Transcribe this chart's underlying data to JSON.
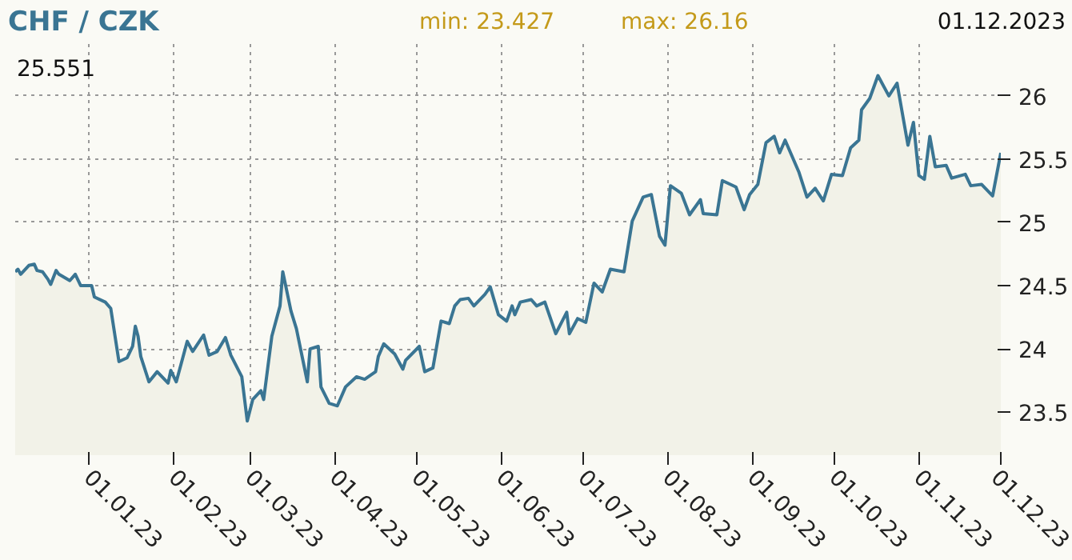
{
  "chart_data": {
    "type": "area",
    "title": "CHF / CZK",
    "annotations": [
      "min: 23.427",
      "max: 26.16",
      "01.12.2023",
      "25.551"
    ],
    "x": [
      "2022-12-05",
      "2022-12-06",
      "2022-12-07",
      "2022-12-10",
      "2022-12-12",
      "2022-12-13",
      "2022-12-15",
      "2022-12-17",
      "2022-12-18",
      "2022-12-20",
      "2022-12-21",
      "2022-12-25",
      "2022-12-27",
      "2022-12-29",
      "2023-01-02",
      "2023-01-03",
      "2023-01-07",
      "2023-01-09",
      "2023-01-12",
      "2023-01-15",
      "2023-01-17",
      "2023-01-18",
      "2023-01-19",
      "2023-01-20",
      "2023-01-23",
      "2023-01-26",
      "2023-01-30",
      "2023-01-31",
      "2023-02-02",
      "2023-02-06",
      "2023-02-08",
      "2023-02-12",
      "2023-02-14",
      "2023-02-17",
      "2023-02-20",
      "2023-02-22",
      "2023-02-26",
      "2023-02-28",
      "2023-03-02",
      "2023-03-05",
      "2023-03-06",
      "2023-03-09",
      "2023-03-12",
      "2023-03-13",
      "2023-03-16",
      "2023-03-18",
      "2023-03-22",
      "2023-03-23",
      "2023-03-26",
      "2023-03-27",
      "2023-03-30",
      "2023-04-02",
      "2023-04-05",
      "2023-04-09",
      "2023-04-12",
      "2023-04-16",
      "2023-04-17",
      "2023-04-19",
      "2023-04-23",
      "2023-04-26",
      "2023-04-27",
      "2023-05-02",
      "2023-05-04",
      "2023-05-07",
      "2023-05-10",
      "2023-05-13",
      "2023-05-15",
      "2023-05-17",
      "2023-05-20",
      "2023-05-22",
      "2023-05-26",
      "2023-05-28",
      "2023-05-31",
      "2023-06-03",
      "2023-06-05",
      "2023-06-06",
      "2023-06-08",
      "2023-06-12",
      "2023-06-14",
      "2023-06-17",
      "2023-06-21",
      "2023-06-25",
      "2023-06-26",
      "2023-06-29",
      "2023-07-02",
      "2023-07-05",
      "2023-07-08",
      "2023-07-11",
      "2023-07-16",
      "2023-07-19",
      "2023-07-23",
      "2023-07-26",
      "2023-07-29",
      "2023-07-31",
      "2023-08-02",
      "2023-08-06",
      "2023-08-09",
      "2023-08-13",
      "2023-08-14",
      "2023-08-19",
      "2023-08-21",
      "2023-08-26",
      "2023-08-29",
      "2023-08-31",
      "2023-09-03",
      "2023-09-06",
      "2023-09-09",
      "2023-09-11",
      "2023-09-13",
      "2023-09-18",
      "2023-09-21",
      "2023-09-24",
      "2023-09-27",
      "2023-09-30",
      "2023-10-04",
      "2023-10-07",
      "2023-10-10",
      "2023-10-11",
      "2023-10-14",
      "2023-10-17",
      "2023-10-21",
      "2023-10-24",
      "2023-10-28",
      "2023-10-30",
      "2023-11-01",
      "2023-11-03",
      "2023-11-05",
      "2023-11-07",
      "2023-11-11",
      "2023-11-13",
      "2023-11-18",
      "2023-11-20",
      "2023-11-24",
      "2023-11-28",
      "2023-12-01"
    ],
    "series": [
      {
        "color": "#3a7593",
        "values": [
          24.61,
          24.63,
          24.59,
          24.66,
          24.67,
          24.62,
          24.61,
          24.55,
          24.51,
          24.62,
          24.59,
          24.54,
          24.59,
          24.5,
          24.5,
          24.41,
          24.37,
          24.32,
          23.9,
          23.93,
          24.02,
          24.18,
          24.1,
          23.94,
          23.74,
          23.82,
          23.73,
          23.83,
          23.74,
          24.06,
          23.98,
          24.11,
          23.95,
          23.98,
          24.09,
          23.95,
          23.78,
          23.43,
          23.6,
          23.67,
          23.6,
          24.1,
          24.34,
          24.61,
          24.3,
          24.16,
          23.74,
          24.0,
          24.02,
          23.7,
          23.57,
          23.55,
          23.7,
          23.78,
          23.76,
          23.82,
          23.94,
          24.04,
          23.96,
          23.84,
          23.91,
          24.02,
          23.82,
          23.85,
          24.22,
          24.2,
          24.34,
          24.39,
          24.4,
          24.34,
          24.43,
          24.49,
          24.27,
          24.22,
          24.34,
          24.27,
          24.37,
          24.39,
          24.34,
          24.37,
          24.12,
          24.29,
          24.12,
          24.24,
          24.21,
          24.52,
          24.45,
          24.63,
          24.61,
          25.01,
          25.2,
          25.22,
          24.89,
          24.82,
          25.29,
          25.23,
          25.06,
          25.18,
          25.07,
          25.06,
          25.33,
          25.28,
          25.1,
          25.22,
          25.3,
          25.63,
          25.68,
          25.55,
          25.65,
          25.4,
          25.2,
          25.27,
          25.17,
          25.38,
          25.37,
          25.59,
          25.65,
          25.89,
          25.98,
          26.16,
          26.0,
          26.1,
          25.61,
          25.79,
          25.37,
          25.34,
          25.68,
          25.44,
          25.45,
          25.35,
          25.38,
          25.29,
          25.3,
          25.21,
          25.55
        ]
      }
    ],
    "xlim": [
      "2022-12-05",
      "2023-12-01"
    ],
    "xticks": [
      {
        "value": "2023-01-01",
        "label": "01.01.23"
      },
      {
        "value": "2023-02-01",
        "label": "01.02.23"
      },
      {
        "value": "2023-03-01",
        "label": "01.03.23"
      },
      {
        "value": "2023-04-01",
        "label": "01.04.23"
      },
      {
        "value": "2023-05-01",
        "label": "01.05.23"
      },
      {
        "value": "2023-06-01",
        "label": "01.06.23"
      },
      {
        "value": "2023-07-01",
        "label": "01.07.23"
      },
      {
        "value": "2023-08-01",
        "label": "01.08.23"
      },
      {
        "value": "2023-09-01",
        "label": "01.09.23"
      },
      {
        "value": "2023-10-01",
        "label": "01.10.23"
      },
      {
        "value": "2023-11-01",
        "label": "01.11.23"
      },
      {
        "value": "2023-12-01",
        "label": "01.12.23"
      }
    ],
    "ylim": [
      23.16,
      26.41
    ],
    "yticks": [
      23.5,
      24,
      24.5,
      25,
      25.5,
      26
    ],
    "grid": true
  }
}
